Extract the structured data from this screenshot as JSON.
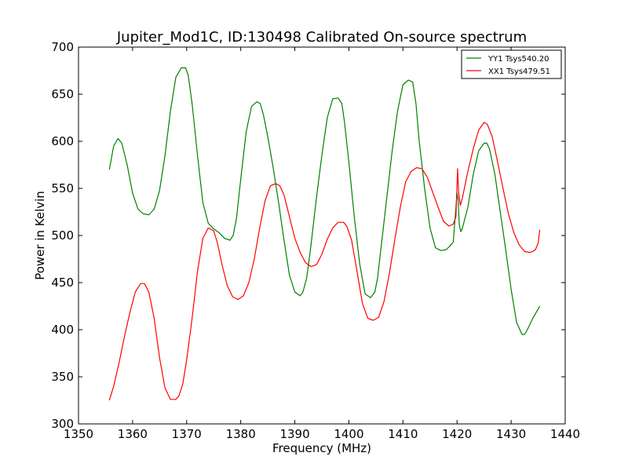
{
  "chart_data": {
    "type": "line",
    "title": "Jupiter_Mod1C, ID:130498 Calibrated On-source spectrum",
    "xlabel": "Frequency (MHz)",
    "ylabel": "Power in Kelvin",
    "xlim": [
      1350,
      1440
    ],
    "ylim": [
      300,
      700
    ],
    "xticks": [
      1350,
      1360,
      1370,
      1380,
      1390,
      1400,
      1410,
      1420,
      1430,
      1440
    ],
    "yticks": [
      300,
      350,
      400,
      450,
      500,
      550,
      600,
      650,
      700
    ],
    "xtick_labels": [
      "1350",
      "1360",
      "1370",
      "1380",
      "1390",
      "1400",
      "1410",
      "1420",
      "1430",
      "1440"
    ],
    "ytick_labels": [
      "300",
      "350",
      "400",
      "450",
      "500",
      "550",
      "600",
      "650",
      "700"
    ],
    "grid": false,
    "legend_position": "top-right",
    "series": [
      {
        "name": "YY1 Tsys540.20",
        "color": "#008000",
        "x": [
          1355.7,
          1356.5,
          1357.3,
          1358.0,
          1359.0,
          1360.0,
          1361.0,
          1362.0,
          1363.0,
          1364.0,
          1365.0,
          1366.0,
          1367.0,
          1368.0,
          1369.0,
          1369.8,
          1370.3,
          1371.0,
          1372.0,
          1373.0,
          1374.0,
          1375.0,
          1376.0,
          1377.0,
          1378.0,
          1378.6,
          1379.2,
          1380.0,
          1381.0,
          1382.0,
          1383.0,
          1383.6,
          1384.2,
          1385.0,
          1386.0,
          1387.0,
          1388.0,
          1389.0,
          1390.0,
          1391.0,
          1391.5,
          1392.2,
          1393.0,
          1394.0,
          1395.0,
          1396.0,
          1397.0,
          1398.0,
          1398.7,
          1399.2,
          1400.0,
          1401.0,
          1402.0,
          1403.0,
          1404.0,
          1404.8,
          1405.3,
          1406.0,
          1407.0,
          1408.0,
          1409.0,
          1410.0,
          1411.0,
          1411.8,
          1412.4,
          1413.0,
          1414.0,
          1415.0,
          1416.0,
          1417.0,
          1418.0,
          1418.7,
          1419.3,
          1420.0,
          1420.2,
          1420.4,
          1420.7,
          1421.0,
          1422.0,
          1423.0,
          1424.0,
          1425.0,
          1425.5,
          1426.0,
          1427.0,
          1428.0,
          1429.0,
          1430.0,
          1431.0,
          1432.0,
          1432.5,
          1433.0,
          1434.0,
          1435.0,
          1435.3
        ],
        "y": [
          570,
          595,
          603,
          598,
          575,
          545,
          528,
          523,
          522,
          528,
          548,
          585,
          632,
          668,
          678,
          678,
          670,
          640,
          585,
          535,
          513,
          507,
          503,
          497,
          495,
          500,
          518,
          560,
          610,
          637,
          642,
          640,
          628,
          605,
          572,
          535,
          495,
          458,
          440,
          436,
          440,
          455,
          490,
          540,
          585,
          625,
          645,
          646,
          640,
          620,
          578,
          520,
          470,
          438,
          434,
          440,
          455,
          490,
          540,
          590,
          632,
          660,
          665,
          663,
          640,
          600,
          550,
          508,
          487,
          484,
          485,
          489,
          493,
          545,
          538,
          512,
          504,
          508,
          530,
          565,
          590,
          598,
          598,
          592,
          565,
          525,
          485,
          443,
          408,
          395,
          395,
          400,
          412,
          422,
          425
        ]
      },
      {
        "name": "XX1 Tsys479.51",
        "color": "#ff0000",
        "x": [
          1355.7,
          1356.5,
          1357.5,
          1358.5,
          1359.5,
          1360.5,
          1361.5,
          1362.2,
          1363.0,
          1364.0,
          1365.0,
          1366.0,
          1367.0,
          1368.0,
          1368.6,
          1369.3,
          1370.0,
          1371.0,
          1372.0,
          1373.0,
          1374.0,
          1375.0,
          1375.7,
          1376.5,
          1377.5,
          1378.5,
          1379.5,
          1380.5,
          1381.5,
          1382.5,
          1383.5,
          1384.5,
          1385.5,
          1386.5,
          1387.2,
          1388.0,
          1389.0,
          1390.0,
          1391.0,
          1392.0,
          1393.0,
          1394.0,
          1395.0,
          1396.0,
          1397.0,
          1398.0,
          1399.0,
          1399.6,
          1400.5,
          1401.5,
          1402.5,
          1403.5,
          1404.5,
          1405.5,
          1406.5,
          1407.5,
          1408.5,
          1409.5,
          1410.5,
          1411.5,
          1412.5,
          1413.5,
          1414.5,
          1415.5,
          1416.5,
          1417.5,
          1418.5,
          1419.3,
          1419.8,
          1420.1,
          1420.3,
          1420.6,
          1421.0,
          1422.0,
          1423.0,
          1424.0,
          1425.0,
          1425.6,
          1426.5,
          1427.5,
          1428.5,
          1429.5,
          1430.5,
          1431.5,
          1432.5,
          1433.5,
          1434.0,
          1434.5,
          1435.0,
          1435.3
        ],
        "y": [
          325,
          340,
          365,
          393,
          418,
          440,
          449,
          449,
          440,
          412,
          370,
          338,
          326,
          326,
          330,
          343,
          368,
          412,
          462,
          497,
          508,
          505,
          492,
          470,
          447,
          435,
          432,
          436,
          450,
          475,
          508,
          537,
          553,
          555,
          553,
          543,
          520,
          497,
          482,
          471,
          467,
          469,
          480,
          496,
          508,
          514,
          514,
          510,
          495,
          462,
          428,
          412,
          410,
          413,
          430,
          460,
          496,
          530,
          557,
          568,
          572,
          571,
          562,
          546,
          530,
          515,
          510,
          512,
          520,
          571,
          545,
          532,
          540,
          568,
          592,
          612,
          620,
          618,
          605,
          578,
          550,
          523,
          503,
          490,
          483,
          482,
          483,
          485,
          492,
          506
        ]
      }
    ]
  }
}
